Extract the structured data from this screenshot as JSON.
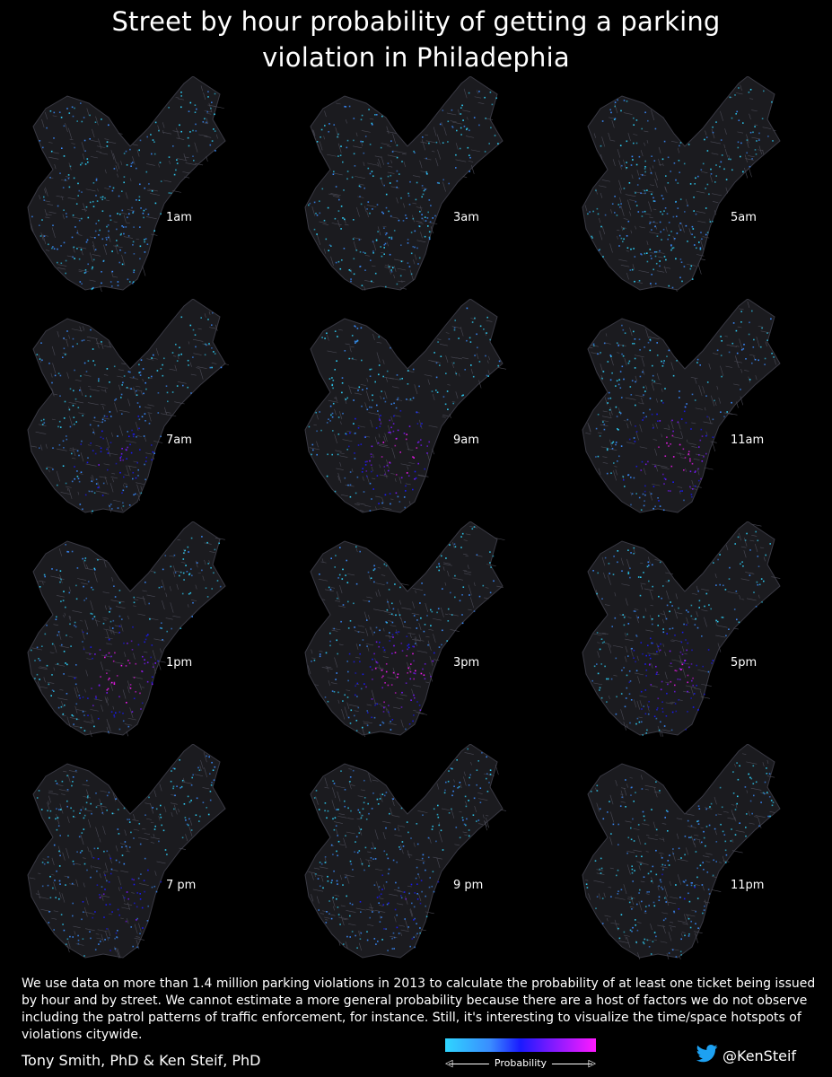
{
  "title": {
    "line1": "Street by hour probability of getting a parking",
    "line2": "violation in Philadephia"
  },
  "panels": [
    {
      "label": "1am",
      "magenta": 0.05
    },
    {
      "label": "3am",
      "magenta": 0.03
    },
    {
      "label": "5am",
      "magenta": 0.02
    },
    {
      "label": "7am",
      "magenta": 0.35
    },
    {
      "label": "9am",
      "magenta": 0.6
    },
    {
      "label": "11am",
      "magenta": 0.7
    },
    {
      "label": "1pm",
      "magenta": 0.7
    },
    {
      "label": "3pm",
      "magenta": 0.65
    },
    {
      "label": "5pm",
      "magenta": 0.5
    },
    {
      "label": "7 pm",
      "magenta": 0.35
    },
    {
      "label": "9 pm",
      "magenta": 0.25
    },
    {
      "label": "11pm",
      "magenta": 0.12
    }
  ],
  "description": "We use data on more than 1.4 million parking violations in 2013 to calculate the probability of at least one ticket being issued by hour and by street. We cannot estimate a more general probability because there are a host of factors we do not observe including the patrol patterns of traffic enforcement, for instance. Still, it's interesting to visualize the time/space hotspots of violations citywide.",
  "authors": "Tony Smith, PhD & Ken Steif, PhD",
  "legend": {
    "label": "Probability",
    "colors": [
      "#2fd6ff",
      "#3a8cff",
      "#1a1aff",
      "#7a1aff",
      "#ff1aff"
    ]
  },
  "twitter": {
    "handle": "@KenSteif",
    "icon": "twitter-bird-icon",
    "color": "#1da1f2"
  }
}
